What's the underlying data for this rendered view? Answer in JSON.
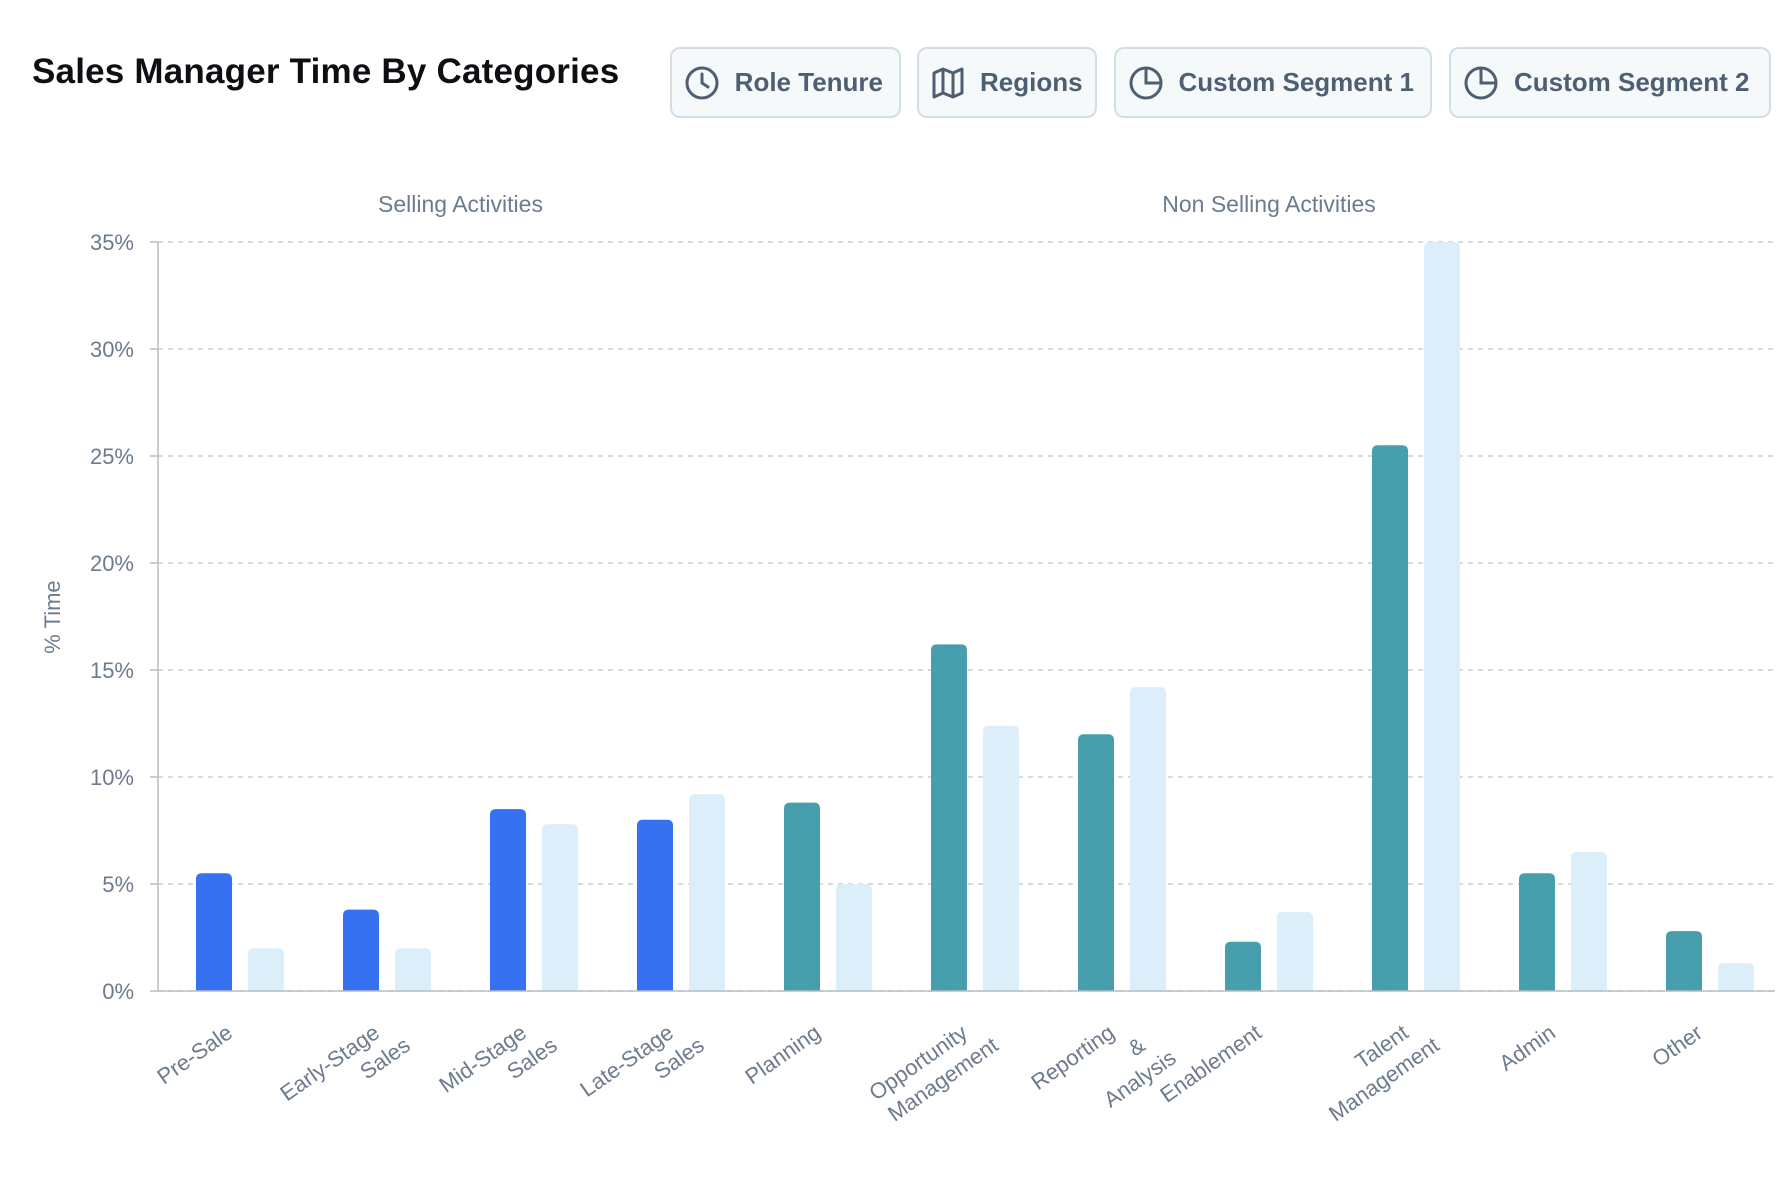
{
  "header": {
    "title": "Sales Manager Time By Categories",
    "buttons": [
      {
        "label": "Role Tenure",
        "icon": "clock-icon"
      },
      {
        "label": "Regions",
        "icon": "map-icon"
      },
      {
        "label": "Custom Segment 1",
        "icon": "pie-chart-icon"
      },
      {
        "label": "Custom Segment 2",
        "icon": "pie-chart-icon"
      }
    ]
  },
  "chart_data": {
    "type": "bar",
    "title": "Sales Manager Time By Categories",
    "ylabel": "% Time",
    "xlabel": "",
    "ylim": [
      0,
      35
    ],
    "yticks": [
      "0%",
      "5%",
      "10%",
      "15%",
      "20%",
      "25%",
      "30%",
      "35%"
    ],
    "grid": true,
    "groups": [
      {
        "label": "Selling Activities",
        "categories": [
          0,
          1,
          2,
          3
        ]
      },
      {
        "label": "Non Selling Activities",
        "categories": [
          4,
          5,
          6,
          7,
          8,
          9,
          10
        ]
      }
    ],
    "categories": [
      [
        "Pre-Sale"
      ],
      [
        "Early-Stage",
        "Sales"
      ],
      [
        "Mid-Stage",
        "Sales"
      ],
      [
        "Late-Stage",
        "Sales"
      ],
      [
        "Planning"
      ],
      [
        "Opportunity",
        "Management"
      ],
      [
        "Reporting",
        "&",
        "Analysis"
      ],
      [
        "Enablement"
      ],
      [
        "Talent",
        "Management"
      ],
      [
        "Admin"
      ],
      [
        "Other"
      ]
    ],
    "series": [
      {
        "values": [
          5.5,
          3.8,
          8.5,
          8.0,
          8.8,
          16.2,
          12.0,
          2.3,
          25.5,
          5.5,
          2.8
        ]
      },
      {
        "values": [
          2.0,
          2.0,
          7.8,
          9.2,
          5.0,
          12.4,
          14.2,
          3.7,
          35.0,
          6.5,
          1.3
        ]
      }
    ],
    "colors": {
      "selling": "#3571f0",
      "non_selling": "#479ead",
      "comparison": "#ddeefb",
      "grid": "#c9cfd6",
      "axis": "#b5bec8"
    }
  }
}
